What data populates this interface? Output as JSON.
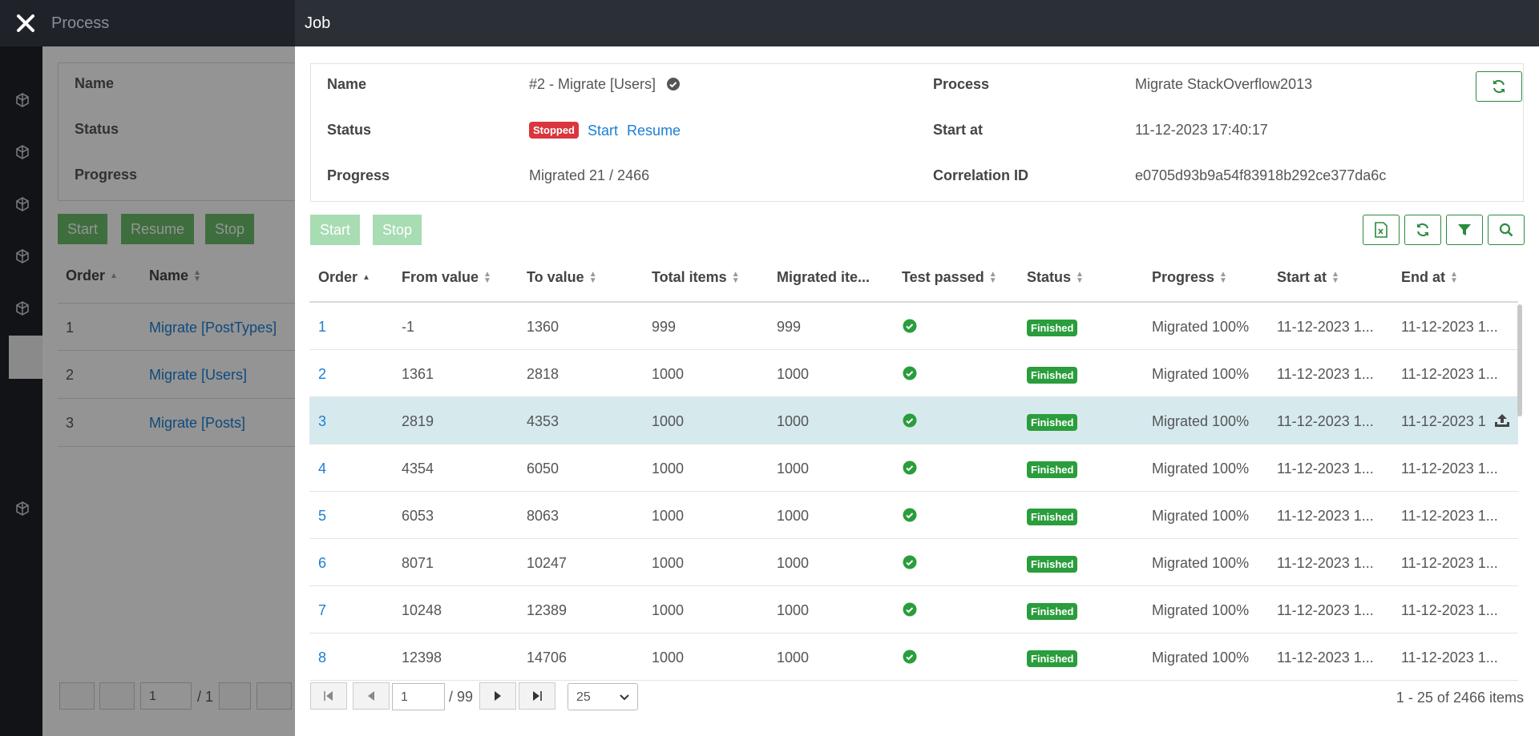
{
  "app": {
    "process_title": "Process"
  },
  "background": {
    "fields": [
      "Name",
      "Status",
      "Progress"
    ],
    "buttons": [
      "Start",
      "Resume",
      "Stop"
    ],
    "headers": [
      "Order",
      "Name"
    ],
    "rows": [
      {
        "order": "1",
        "name": "Migrate [PostTypes]"
      },
      {
        "order": "2",
        "name": "Migrate [Users]"
      },
      {
        "order": "3",
        "name": "Migrate [Posts]"
      }
    ],
    "pager": {
      "page": "1",
      "total": "/ 1"
    }
  },
  "job": {
    "title": "Job",
    "info": {
      "name_label": "Name",
      "name_value": "#2 - Migrate [Users]",
      "status_label": "Status",
      "status_badge": "Stopped",
      "start_link": "Start",
      "resume_link": "Resume",
      "progress_label": "Progress",
      "progress_value": "Migrated 21 / 2466",
      "process_label": "Process",
      "process_value": "Migrate StackOverflow2013",
      "startat_label": "Start at",
      "startat_value": "11-12-2023 17:40:17",
      "corr_label": "Correlation ID",
      "corr_value": "e0705d93b9a54f83918b292ce377da6c"
    },
    "actions": {
      "start": "Start",
      "stop": "Stop"
    },
    "table": {
      "headers": [
        "Order",
        "From value",
        "To value",
        "Total items",
        "Migrated ite...",
        "Test passed",
        "Status",
        "Progress",
        "Start at",
        "End at"
      ],
      "rows": [
        {
          "order": "1",
          "from": "-1",
          "to": "1360",
          "total": "999",
          "migrated": "999",
          "status": "Finished",
          "progress": "Migrated 100%",
          "start": "11-12-2023 1...",
          "end": "11-12-2023 1..."
        },
        {
          "order": "2",
          "from": "1361",
          "to": "2818",
          "total": "1000",
          "migrated": "1000",
          "status": "Finished",
          "progress": "Migrated 100%",
          "start": "11-12-2023 1...",
          "end": "11-12-2023 1..."
        },
        {
          "order": "3",
          "from": "2819",
          "to": "4353",
          "total": "1000",
          "migrated": "1000",
          "status": "Finished",
          "progress": "Migrated 100%",
          "start": "11-12-2023 1...",
          "end": "11-12-2023 1"
        },
        {
          "order": "4",
          "from": "4354",
          "to": "6050",
          "total": "1000",
          "migrated": "1000",
          "status": "Finished",
          "progress": "Migrated 100%",
          "start": "11-12-2023 1...",
          "end": "11-12-2023 1..."
        },
        {
          "order": "5",
          "from": "6053",
          "to": "8063",
          "total": "1000",
          "migrated": "1000",
          "status": "Finished",
          "progress": "Migrated 100%",
          "start": "11-12-2023 1...",
          "end": "11-12-2023 1..."
        },
        {
          "order": "6",
          "from": "8071",
          "to": "10247",
          "total": "1000",
          "migrated": "1000",
          "status": "Finished",
          "progress": "Migrated 100%",
          "start": "11-12-2023 1...",
          "end": "11-12-2023 1..."
        },
        {
          "order": "7",
          "from": "10248",
          "to": "12389",
          "total": "1000",
          "migrated": "1000",
          "status": "Finished",
          "progress": "Migrated 100%",
          "start": "11-12-2023 1...",
          "end": "11-12-2023 1..."
        },
        {
          "order": "8",
          "from": "12398",
          "to": "14706",
          "total": "1000",
          "migrated": "1000",
          "status": "Finished",
          "progress": "Migrated 100%",
          "start": "11-12-2023 1...",
          "end": "11-12-2023 1..."
        }
      ]
    },
    "pager": {
      "page": "1",
      "total": "/ 99",
      "page_size": "25",
      "summary": "1 - 25 of 2466 items"
    }
  },
  "colors": {
    "accent": "#2a8a3e",
    "link": "#1a7fd4",
    "stopped": "#d9363e",
    "finished": "#2a9d3c",
    "selected_row": "#d6eaee"
  }
}
